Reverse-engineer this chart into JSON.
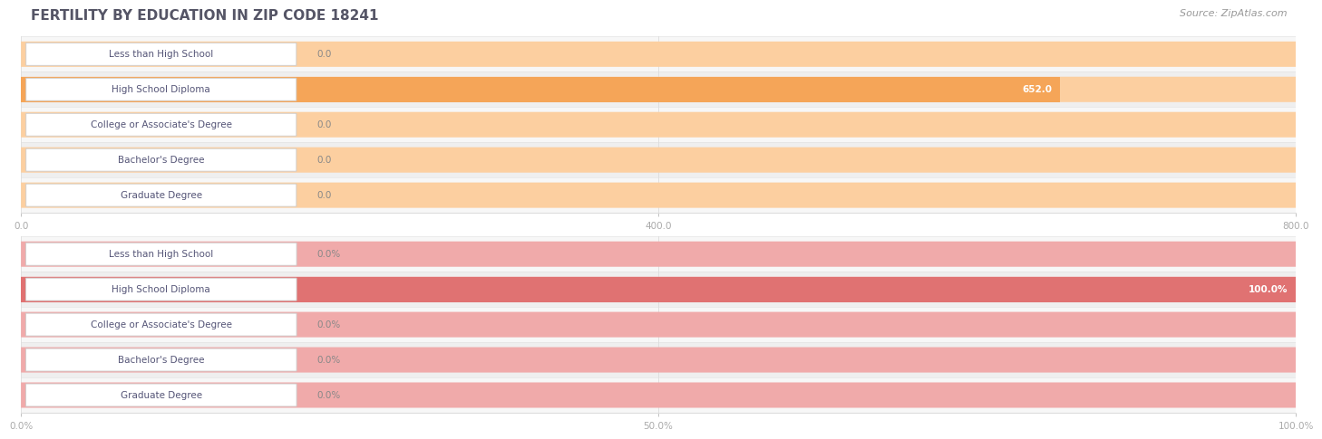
{
  "title": "FERTILITY BY EDUCATION IN ZIP CODE 18241",
  "source_text": "Source: ZipAtlas.com",
  "categories": [
    "Less than High School",
    "High School Diploma",
    "College or Associate's Degree",
    "Bachelor's Degree",
    "Graduate Degree"
  ],
  "values_abs": [
    0.0,
    652.0,
    0.0,
    0.0,
    0.0
  ],
  "values_pct": [
    0.0,
    100.0,
    0.0,
    0.0,
    0.0
  ],
  "xlim_abs_max": 800.0,
  "xlim_pct_max": 100.0,
  "xticks_abs": [
    0.0,
    400.0,
    800.0
  ],
  "xticks_pct": [
    0.0,
    50.0,
    100.0
  ],
  "bar_color_abs_main": "#F5A558",
  "bar_color_abs_bg": "#FCCFA0",
  "bar_color_pct_main": "#E07272",
  "bar_color_pct_bg": "#F0AAAA",
  "label_box_bg": "#ffffff",
  "label_box_edge": "#cccccc",
  "row_bg_odd": "#f7f7f7",
  "row_bg_even": "#efefef",
  "row_separator": "#e0e0e0",
  "title_color": "#555566",
  "tick_label_color": "#aaaaaa",
  "grid_color": "#dddddd",
  "fig_bg": "#ffffff",
  "title_fontsize": 11,
  "label_fontsize": 7.5,
  "value_fontsize": 7.5,
  "source_fontsize": 8,
  "value_inside_color": "#ffffff",
  "value_outside_color": "#888888",
  "label_text_color": "#555577"
}
